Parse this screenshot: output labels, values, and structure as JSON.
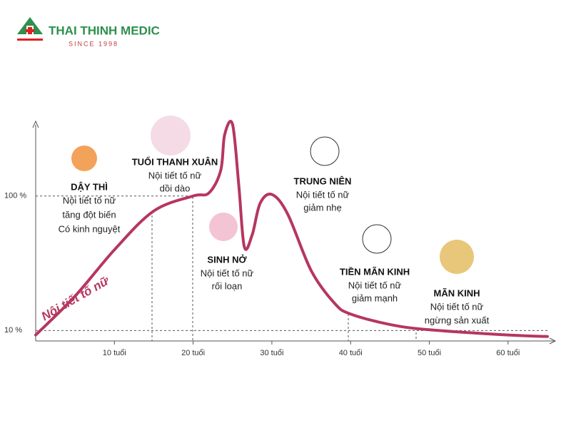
{
  "logo": {
    "name": "THAI THINH MEDIC",
    "tagline": "SINCE 1998"
  },
  "chart_data": {
    "type": "line",
    "ylabel": "Nội tiết tố nữ",
    "x": [
      0,
      5,
      10,
      15,
      20,
      22,
      23.5,
      24,
      25,
      25.8,
      26.5,
      27.5,
      28.5,
      30,
      32,
      35,
      38,
      40,
      45,
      50,
      60,
      65
    ],
    "values": [
      7,
      33,
      64,
      90,
      100,
      102,
      117,
      141,
      148,
      107,
      66,
      74,
      95,
      101,
      88,
      50,
      28,
      21,
      14,
      10.5,
      7,
      6
    ],
    "color": "#b5375f",
    "xlim": [
      0,
      66
    ],
    "ylim": [
      3,
      150
    ],
    "xticks": [
      {
        "value": 10,
        "label": "10 tuổi"
      },
      {
        "value": 20,
        "label": "20 tuổi"
      },
      {
        "value": 30,
        "label": "30 tuổi"
      },
      {
        "value": 40,
        "label": "40 tuổi"
      },
      {
        "value": 50,
        "label": "50 tuổi"
      },
      {
        "value": 60,
        "label": "60 tuổi"
      }
    ],
    "yticks": [
      {
        "value": 10,
        "label": "10 %"
      },
      {
        "value": 100,
        "label": "100 %"
      }
    ],
    "grid": true,
    "annotations": [
      {
        "title": "DẬY THÌ",
        "text": [
          "Nội tiết tố nữ",
          "tăng đột biến",
          "Có kinh nguyệt"
        ]
      },
      {
        "title": "TUỔI THANH XUÂN",
        "text": [
          "Nội tiết tố nữ",
          "dồi dào"
        ]
      },
      {
        "title": "SINH NỞ",
        "text": [
          "Nội tiết tố nữ",
          "rối loạn"
        ]
      },
      {
        "title": "TRUNG NIÊN",
        "text": [
          "Nội tiết tố nữ",
          "giảm nhẹ"
        ]
      },
      {
        "title": "TIỀN MÃN KINH",
        "text": [
          "Nội tiết tố nữ",
          "giảm mạnh"
        ]
      },
      {
        "title": "MÃN KINH",
        "text": [
          "Nội tiết tố nữ",
          "ngừng sản xuất"
        ]
      }
    ]
  }
}
